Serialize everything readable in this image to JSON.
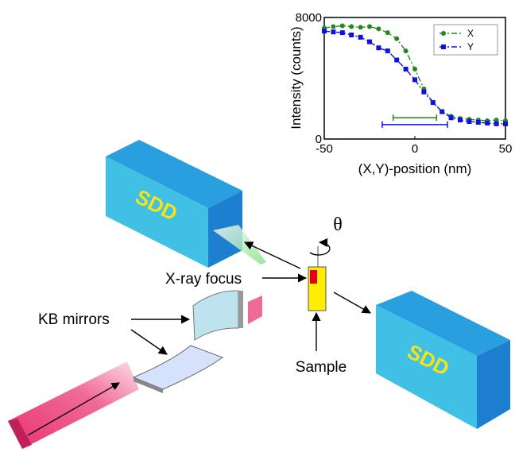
{
  "chart_data": {
    "type": "line",
    "x_label": "(X,Y)-position (nm)",
    "y_label": "Intensity (counts)",
    "x": [
      -50,
      -45,
      -40,
      -35,
      -30,
      -25,
      -20,
      -15,
      -10,
      -5,
      0,
      5,
      10,
      15,
      20,
      25,
      30,
      35,
      40,
      45,
      50
    ],
    "series": [
      {
        "name": "X",
        "color": "#1e8a1e",
        "marker": "circle",
        "values": [
          7300,
          7400,
          7450,
          7400,
          7350,
          7400,
          7250,
          7000,
          6600,
          5800,
          4600,
          3300,
          2400,
          1800,
          1500,
          1350,
          1300,
          1250,
          1200,
          1250,
          1200
        ]
      },
      {
        "name": "Y",
        "color": "#1010e0",
        "marker": "square",
        "values": [
          7100,
          7050,
          7000,
          6850,
          6700,
          6400,
          6000,
          5800,
          5200,
          4600,
          3900,
          3100,
          2400,
          1800,
          1400,
          1250,
          1150,
          1100,
          1050,
          1000,
          1000
        ]
      }
    ],
    "spans": [
      {
        "color": "#1e8a1e",
        "x": [
          -12,
          12
        ],
        "y": 1400
      },
      {
        "color": "#1010e0",
        "x": [
          -18,
          18
        ],
        "y": 950
      }
    ],
    "xlim": [
      -50,
      50
    ],
    "xticks": [
      -50,
      0,
      50
    ],
    "ylim": [
      0,
      8000
    ],
    "yticks": [
      0,
      8000
    ]
  },
  "diagram": {
    "labels": {
      "sdd_top": "SDD",
      "sdd_right": "SDD",
      "theta": "θ",
      "xray_focus": "X-ray focus",
      "kb_mirrors": "KB mirrors",
      "sample": "Sample"
    }
  }
}
